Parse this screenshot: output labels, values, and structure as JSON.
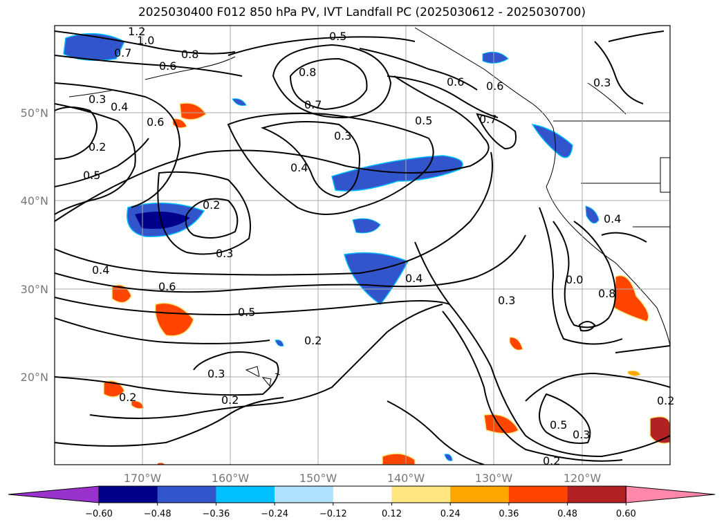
{
  "title": "2025030400 F012 850 hPa PV, IVT Landfall PC (2025030612 - 2025030700)",
  "axes": {
    "lat_ticks": [
      "50°N",
      "40°N",
      "30°N",
      "20°N"
    ],
    "lon_ticks": [
      "170°W",
      "160°W",
      "150°W",
      "140°W",
      "130°W",
      "120°W"
    ]
  },
  "contour_labels": [
    "1.2",
    "1.0",
    "0.7",
    "0.8",
    "0.6",
    "0.3",
    "0.4",
    "0.6",
    "0.2",
    "0.5",
    "0.5",
    "0.8",
    "0.7",
    "0.3",
    "0.5",
    "0.6",
    "0.6",
    "0.7",
    "0.4",
    "0.2",
    "0.3",
    "0.4",
    "0.6",
    "0.5",
    "0.4",
    "0.2",
    "0.3",
    "0.3",
    "0.2",
    "0.2",
    "0.0",
    "0.3",
    "0.8",
    "0.4",
    "0.5",
    "0.3",
    "0.2",
    "0.2"
  ],
  "colorbar": {
    "ticks": [
      "−0.60",
      "−0.48",
      "−0.36",
      "−0.24",
      "−0.12",
      "0.12",
      "0.24",
      "0.36",
      "0.48",
      "0.60"
    ],
    "colors": [
      "#9932cc",
      "#00008b",
      "#3355cc",
      "#00bfff",
      "#b0e2ff",
      "#ffffff",
      "#ffe680",
      "#ffa500",
      "#ff4500",
      "#b22222",
      "#ff88aa"
    ],
    "extend": "both"
  }
}
